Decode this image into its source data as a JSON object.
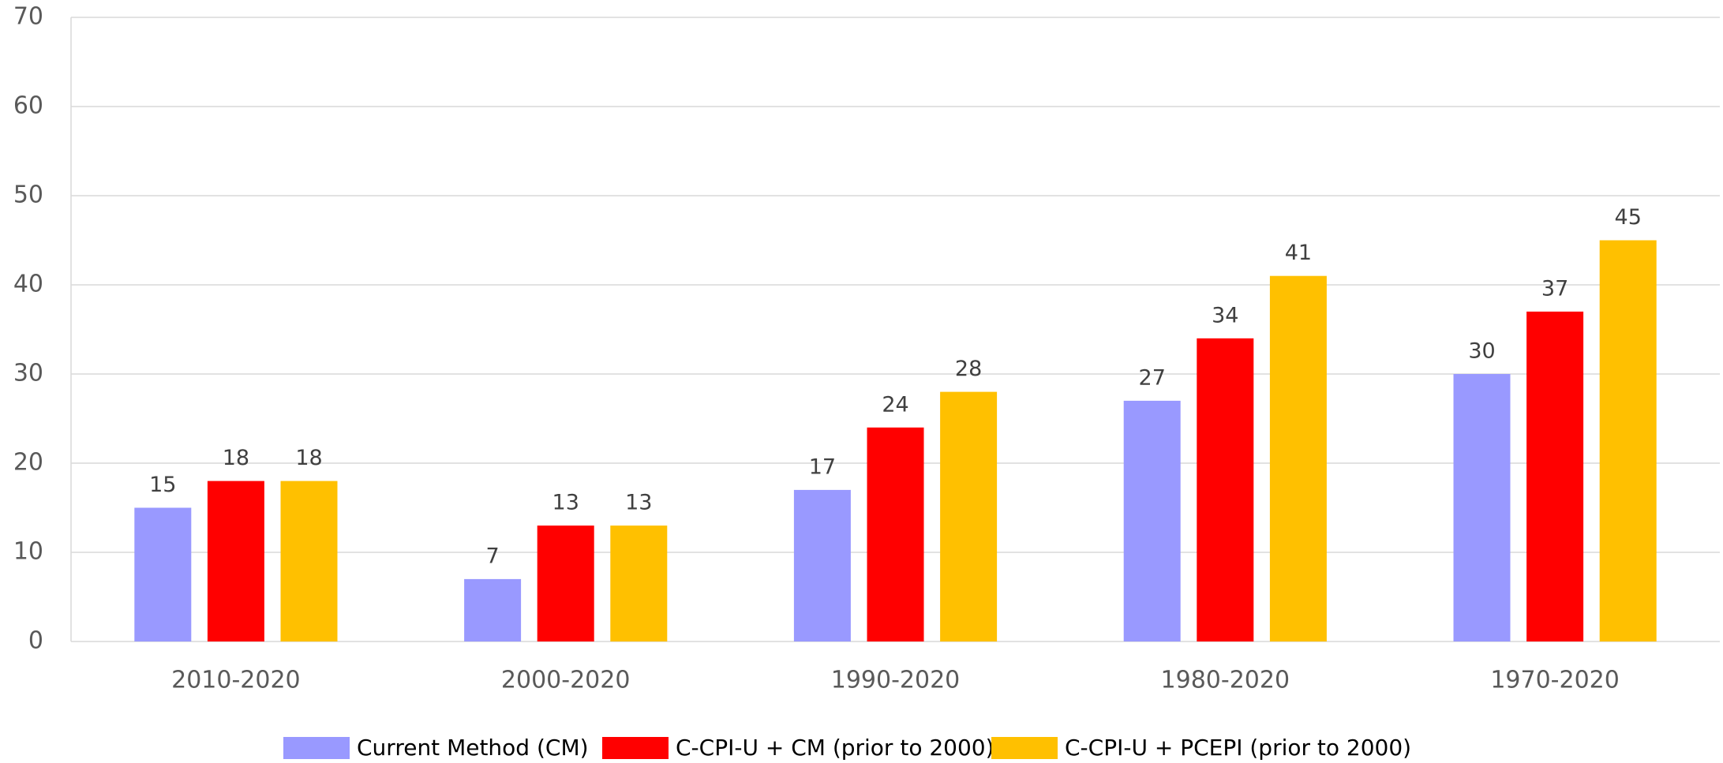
{
  "chart_data": {
    "type": "bar",
    "categories": [
      "2010-2020",
      "2000-2020",
      "1990-2020",
      "1980-2020",
      "1970-2020"
    ],
    "series": [
      {
        "name": "Current Method (CM)",
        "color": "#9999ff",
        "values": [
          15,
          7,
          17,
          27,
          30
        ]
      },
      {
        "name": "C-CPI-U + CM (prior to 2000)",
        "color": "#ff0000",
        "values": [
          18,
          13,
          24,
          34,
          37
        ]
      },
      {
        "name": "C-CPI-U + PCEPI (prior to 2000)",
        "color": "#ffc000",
        "values": [
          18,
          13,
          28,
          41,
          45
        ]
      }
    ],
    "ylim": [
      0,
      70
    ],
    "yticks": [
      0,
      10,
      20,
      30,
      40,
      50,
      60,
      70
    ],
    "grid": true,
    "legend": "bottom"
  }
}
